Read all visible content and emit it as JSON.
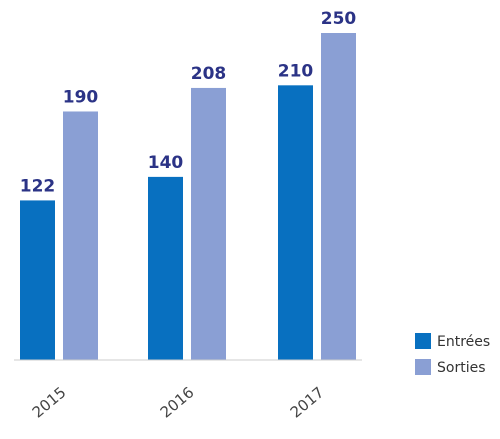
{
  "chart_data": {
    "type": "bar",
    "categories": [
      "2015",
      "2016",
      "2017"
    ],
    "series": [
      {
        "name": "Entrées",
        "values": [
          122,
          140,
          210
        ],
        "color": "#0870c0"
      },
      {
        "name": "Sorties",
        "values": [
          190,
          208,
          250
        ],
        "color": "#8a9fd4"
      }
    ],
    "ylim": [
      0,
      250
    ],
    "grid": false,
    "legend_position": "bottom-right",
    "data_labels": true
  }
}
